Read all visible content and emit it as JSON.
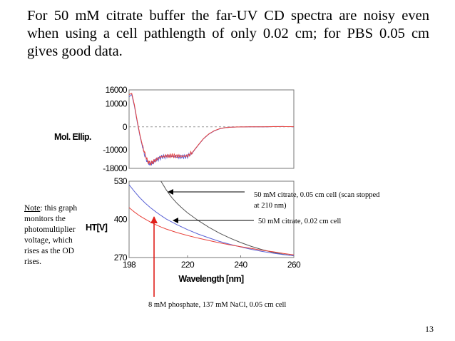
{
  "slide": {
    "title": "For 50 mM citrate buffer the far-UV CD spectra are noisy even when using a cell pathlength of only 0.02 cm; for PBS 0.05 cm gives good data.",
    "page_number": "13",
    "note_label": "Note",
    "note_text": ": this graph monitors the photomultiplier voltage, which rises as the OD rises."
  },
  "colors": {
    "red": "#e8413a",
    "blue": "#5b63d6",
    "black": "#555555",
    "arrow_red": "#e0201b"
  },
  "chart_data": [
    {
      "type": "line",
      "title": "",
      "ylabel": "Mol. Ellip.",
      "xlabel": "",
      "xlim": [
        198,
        260
      ],
      "ylim": [
        -18000,
        16000
      ],
      "yticks": [
        "16000",
        "10000",
        "0",
        "-10000",
        "-18000"
      ],
      "reference_line": 0,
      "series": [
        {
          "name": "50 mM citrate, 0.02 cm cell",
          "color": "blue",
          "x": [
            198,
            199,
            200,
            201,
            202,
            203,
            204,
            205,
            206,
            207,
            208,
            210,
            212,
            214,
            216,
            218,
            220,
            222,
            224,
            226,
            228,
            230,
            232,
            234,
            236,
            238,
            240,
            242,
            244,
            246,
            248,
            250,
            252,
            256,
            260
          ],
          "y": [
            13000,
            14000,
            9000,
            2500,
            -3500,
            -8500,
            -12500,
            -15500,
            -16000,
            -15500,
            -14500,
            -13200,
            -12800,
            -12700,
            -12900,
            -13000,
            -12800,
            -11000,
            -8000,
            -5200,
            -3200,
            -1800,
            -900,
            -400,
            -200,
            -100,
            -50,
            -50,
            0,
            -20,
            0,
            0,
            100,
            100,
            50
          ]
        },
        {
          "name": "8 mM phosphate, 137 mM NaCl, 0.05 cm cell",
          "color": "red",
          "x": [
            198,
            199,
            200,
            201,
            202,
            203,
            204,
            205,
            206,
            207,
            208,
            210,
            212,
            214,
            216,
            218,
            220,
            222,
            224,
            226,
            228,
            230,
            232,
            234,
            236,
            238,
            240,
            242,
            244,
            246,
            248,
            250,
            252,
            256,
            260
          ],
          "y": [
            14000,
            14500,
            9500,
            3000,
            -3000,
            -8000,
            -12000,
            -15000,
            -15800,
            -15300,
            -14300,
            -13000,
            -12600,
            -12500,
            -12700,
            -12800,
            -12600,
            -10800,
            -7900,
            -5100,
            -3100,
            -1700,
            -850,
            -380,
            -180,
            -80,
            -40,
            -30,
            0,
            0,
            20,
            50,
            80,
            100,
            60
          ]
        }
      ]
    },
    {
      "type": "line",
      "title": "",
      "ylabel": "HT[V]",
      "xlabel": "Wavelength [nm]",
      "xlim": [
        198,
        260
      ],
      "ylim": [
        270,
        530
      ],
      "xticks": [
        "198",
        "220",
        "240",
        "260"
      ],
      "yticks": [
        "530",
        "400",
        "270"
      ],
      "series": [
        {
          "name": "50 mM citrate, 0.05 cm cell (scan stopped at 210 nm)",
          "color": "black",
          "x": [
            210,
            212,
            214,
            216,
            218,
            220,
            224,
            228,
            232,
            236,
            240,
            244,
            248,
            252,
            256,
            260
          ],
          "y": [
            530,
            500,
            475,
            455,
            438,
            422,
            396,
            373,
            353,
            336,
            321,
            308,
            297,
            288,
            281,
            276
          ]
        },
        {
          "name": "50 mM citrate, 0.02 cm cell",
          "color": "blue",
          "x": [
            198,
            200,
            202,
            204,
            206,
            208,
            210,
            212,
            216,
            220,
            224,
            228,
            232,
            236,
            240,
            244,
            248,
            252,
            256,
            260
          ],
          "y": [
            518,
            495,
            474,
            456,
            440,
            426,
            413,
            401,
            382,
            365,
            350,
            337,
            325,
            315,
            306,
            298,
            291,
            285,
            280,
            276
          ]
        },
        {
          "name": "8 mM phosphate, 137 mM NaCl, 0.05 cm cell",
          "color": "red",
          "x": [
            198,
            200,
            202,
            204,
            206,
            208,
            210,
            212,
            216,
            220,
            224,
            228,
            232,
            236,
            240,
            244,
            248,
            252,
            256,
            260
          ],
          "y": [
            440,
            425,
            412,
            401,
            391,
            382,
            374,
            367,
            355,
            345,
            336,
            328,
            320,
            313,
            307,
            301,
            295,
            290,
            284,
            279
          ]
        }
      ]
    }
  ],
  "annotations": {
    "black_line1": "50 mM citrate, 0.05 cm cell (scan stopped",
    "black_line2": "at 210 nm)",
    "blue": "50 mM citrate, 0.02 cm cell",
    "red": "8 mM phosphate, 137 mM NaCl, 0.05 cm cell"
  }
}
